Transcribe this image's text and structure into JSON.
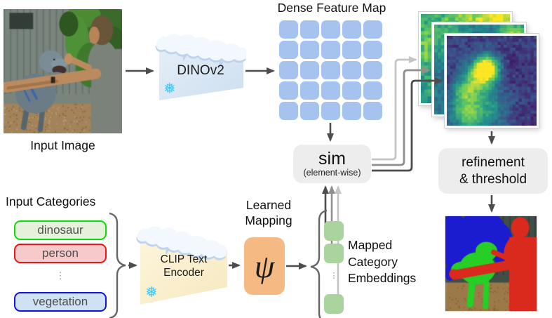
{
  "figure": {
    "input_image": {
      "label": "Input Image",
      "alt": "Photo of a man reaching out toward a raptor dinosaur in front of a metal building with jungle plants"
    },
    "dinov2": {
      "label": "DINOv2",
      "frozen_glyph": "❅"
    },
    "dense_feature_map": {
      "title": "Dense Feature Map",
      "rows": 5,
      "cols": 5
    },
    "sim_block": {
      "label": "sim",
      "sublabel": "(element-wise)"
    },
    "similarity_maps": {
      "alt": "Stack of three per-category similarity heatmaps in viridis colors"
    },
    "refinement_block": {
      "line1": "refinement",
      "line2": "& threshold"
    },
    "segmentation_output": {
      "alt": "Segmentation result: person in red, dinosaur in green, vegetation in blue"
    },
    "input_categories": {
      "title": "Input Categories",
      "ellipsis": "⋮",
      "items": [
        {
          "label": "dinosaur",
          "border_color": "#0ddb06",
          "fill_color": "#e4f2dc",
          "text_color": "#4f4f4f"
        },
        {
          "label": "person",
          "border_color": "#ee1414",
          "fill_color": "#f6caca",
          "text_color": "#4f4f4f"
        },
        {
          "label": "vegetation",
          "border_color": "#1212dd",
          "fill_color": "#cfe1f4",
          "text_color": "#4f4f4f"
        }
      ]
    },
    "clip_encoder": {
      "line1": "CLIP Text",
      "line2": "Encoder",
      "frozen_glyph": "❅"
    },
    "learned_mapping": {
      "line1": "Learned",
      "line2": "Mapping",
      "symbol": "ψ"
    },
    "mapped_embeddings": {
      "line1": "Mapped",
      "line2": "Category",
      "line3": "Embeddings",
      "ellipsis": "⋮"
    },
    "colors": {
      "feature_cell": "#a6c3ef",
      "embedding_cell": "#abd39e",
      "psi_box": "#f5ba84",
      "process_box": "#ededed",
      "arrow_dark": "#4d4d4d",
      "arrow_medium": "#8f8f8f",
      "arrow_light": "#c5c5c5",
      "brace": "#666666",
      "snowflake": "#41c6f1",
      "dinov2_body": "#dde9f5",
      "clip_body": "#fcf2d5"
    }
  }
}
